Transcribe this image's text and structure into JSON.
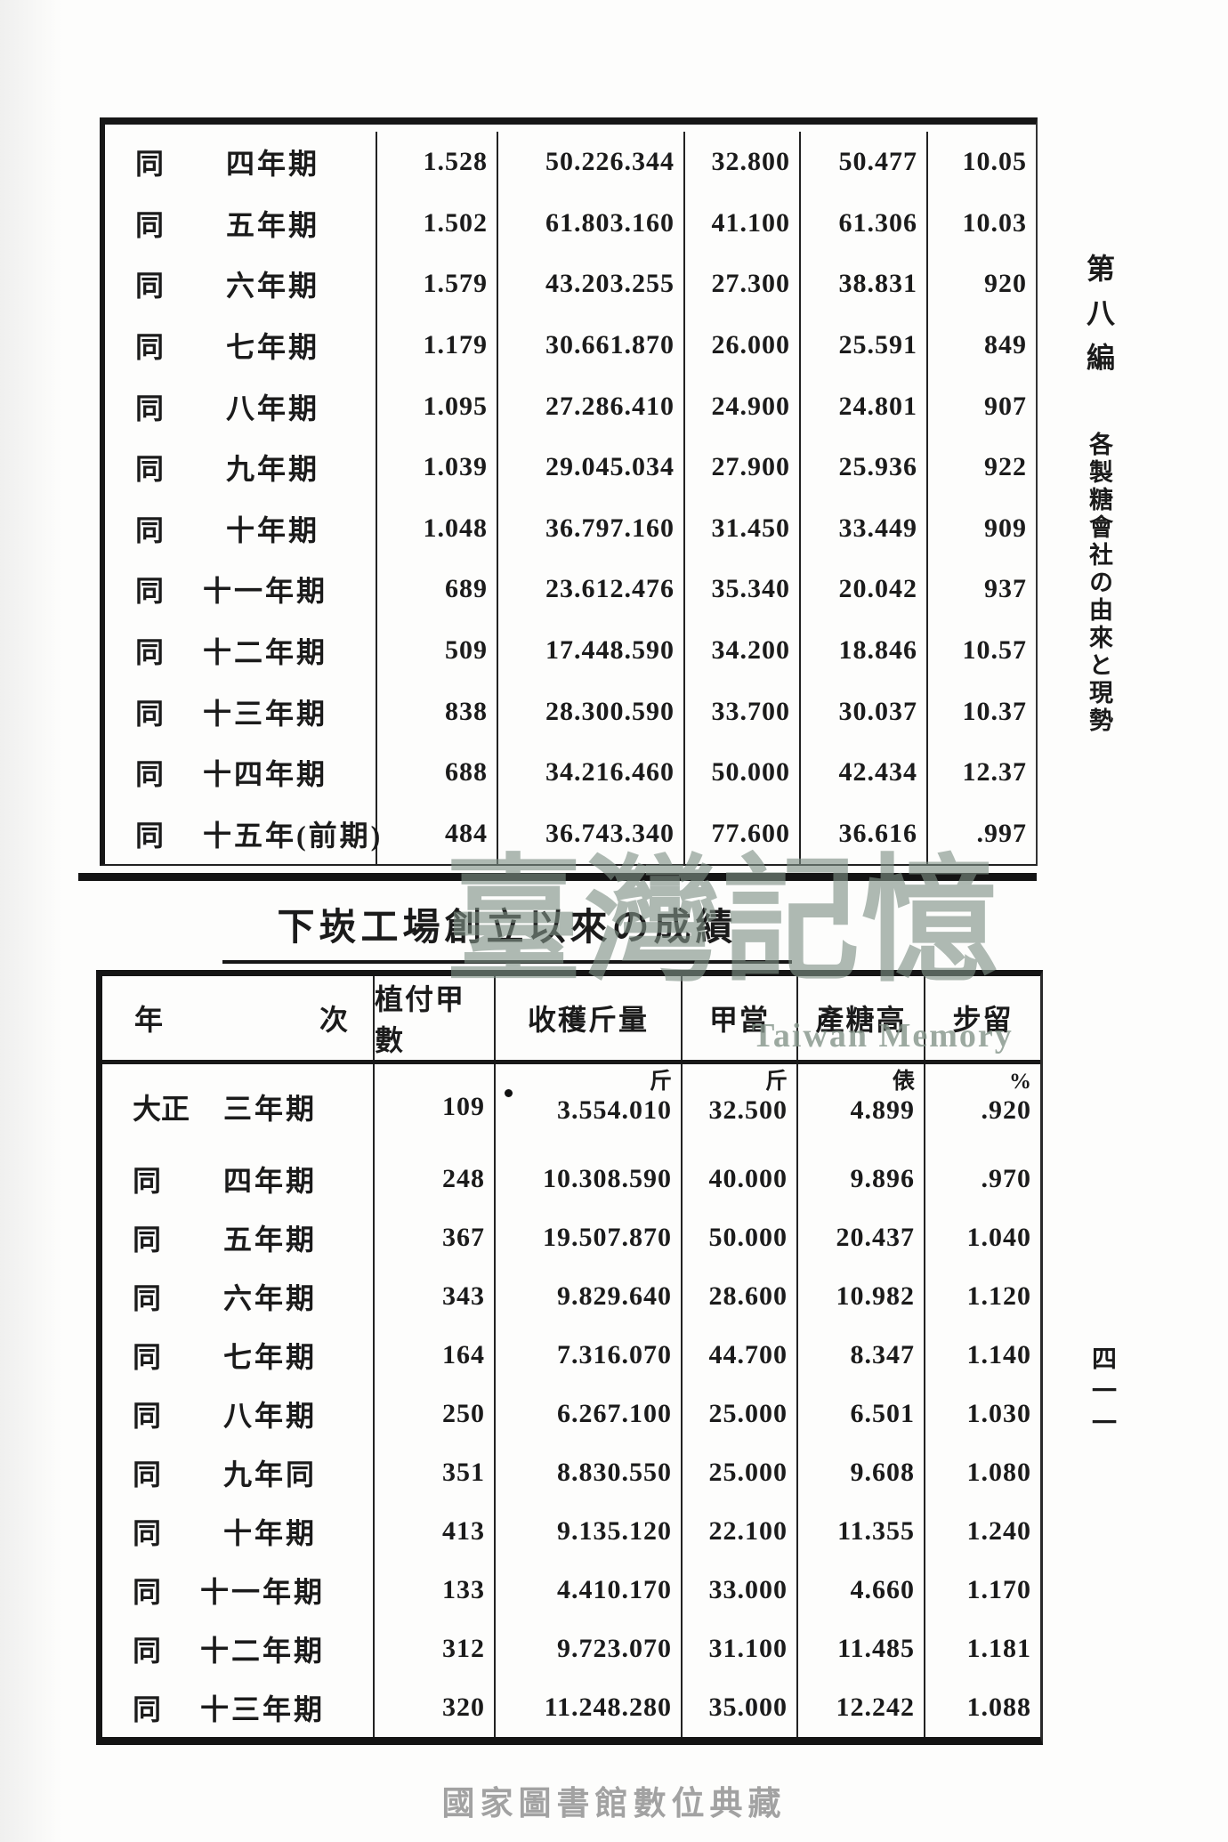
{
  "page": {
    "chapter_side_label": {
      "part1": "第八編",
      "part2": "各製糖會社の由來と現勢"
    },
    "page_number_vertical": "四一一",
    "watermarks": {
      "center_cjk": "臺灣記憶",
      "center_latin": "Taiwan Memory",
      "bottom": "國家圖書館數位典藏"
    },
    "colors": {
      "ink": "#1b1b1b",
      "watermark_green": "#7f9186",
      "watermark_gray": "#a2a2a2"
    }
  },
  "table1": {
    "rows": [
      {
        "era": "同",
        "term": "四年期",
        "c2": "1.528",
        "c3": "50.226.344",
        "c4": "32.800",
        "c5": "50.477",
        "c6": "10.05"
      },
      {
        "era": "同",
        "term": "五年期",
        "c2": "1.502",
        "c3": "61.803.160",
        "c4": "41.100",
        "c5": "61.306",
        "c6": "10.03"
      },
      {
        "era": "同",
        "term": "六年期",
        "c2": "1.579",
        "c3": "43.203.255",
        "c4": "27.300",
        "c5": "38.831",
        "c6": "920"
      },
      {
        "era": "同",
        "term": "七年期",
        "c2": "1.179",
        "c3": "30.661.870",
        "c4": "26.000",
        "c5": "25.591",
        "c6": "849"
      },
      {
        "era": "同",
        "term": "八年期",
        "c2": "1.095",
        "c3": "27.286.410",
        "c4": "24.900",
        "c5": "24.801",
        "c6": "907"
      },
      {
        "era": "同",
        "term": "九年期",
        "c2": "1.039",
        "c3": "29.045.034",
        "c4": "27.900",
        "c5": "25.936",
        "c6": "922"
      },
      {
        "era": "同",
        "term": "十年期",
        "c2": "1.048",
        "c3": "36.797.160",
        "c4": "31.450",
        "c5": "33.449",
        "c6": "909"
      },
      {
        "era": "同",
        "term": "十一年期",
        "c2": "689",
        "c3": "23.612.476",
        "c4": "35.340",
        "c5": "20.042",
        "c6": "937"
      },
      {
        "era": "同",
        "term": "十二年期",
        "c2": "509",
        "c3": "17.448.590",
        "c4": "34.200",
        "c5": "18.846",
        "c6": "10.57"
      },
      {
        "era": "同",
        "term": "十三年期",
        "c2": "838",
        "c3": "28.300.590",
        "c4": "33.700",
        "c5": "30.037",
        "c6": "10.37"
      },
      {
        "era": "同",
        "term": "十四年期",
        "c2": "688",
        "c3": "34.216.460",
        "c4": "50.000",
        "c5": "42.434",
        "c6": "12.37"
      },
      {
        "era": "同",
        "term": "十五年(前期)",
        "c2": "484",
        "c3": "36.743.340",
        "c4": "77.600",
        "c5": "36.616",
        "c6": ".997"
      }
    ]
  },
  "table2": {
    "title": "下崁工場創立以來の成績",
    "headers": {
      "year_left": "年",
      "year_right": "次",
      "planted_area": "植付甲數",
      "harvest": "收穫斤量",
      "per_kou": "甲當",
      "sugar_output": "產糖高",
      "yield": "步留"
    },
    "units": {
      "col3": "斤",
      "col4": "斤",
      "col5": "俵",
      "col6": "%"
    },
    "rows": [
      {
        "era": "大正",
        "term": "三年期",
        "c2": "109",
        "c3": "3.554.010",
        "c4": "32.500",
        "c5": "4.899",
        "c6": ".920"
      },
      {
        "era": "同",
        "term": "四年期",
        "c2": "248",
        "c3": "10.308.590",
        "c4": "40.000",
        "c5": "9.896",
        "c6": ".970"
      },
      {
        "era": "同",
        "term": "五年期",
        "c2": "367",
        "c3": "19.507.870",
        "c4": "50.000",
        "c5": "20.437",
        "c6": "1.040"
      },
      {
        "era": "同",
        "term": "六年期",
        "c2": "343",
        "c3": "9.829.640",
        "c4": "28.600",
        "c5": "10.982",
        "c6": "1.120"
      },
      {
        "era": "同",
        "term": "七年期",
        "c2": "164",
        "c3": "7.316.070",
        "c4": "44.700",
        "c5": "8.347",
        "c6": "1.140"
      },
      {
        "era": "同",
        "term": "八年期",
        "c2": "250",
        "c3": "6.267.100",
        "c4": "25.000",
        "c5": "6.501",
        "c6": "1.030"
      },
      {
        "era": "同",
        "term": "九年同",
        "c2": "351",
        "c3": "8.830.550",
        "c4": "25.000",
        "c5": "9.608",
        "c6": "1.080"
      },
      {
        "era": "同",
        "term": "十年期",
        "c2": "413",
        "c3": "9.135.120",
        "c4": "22.100",
        "c5": "11.355",
        "c6": "1.240"
      },
      {
        "era": "同",
        "term": "十一年期",
        "c2": "133",
        "c3": "4.410.170",
        "c4": "33.000",
        "c5": "4.660",
        "c6": "1.170"
      },
      {
        "era": "同",
        "term": "十二年期",
        "c2": "312",
        "c3": "9.723.070",
        "c4": "31.100",
        "c5": "11.485",
        "c6": "1.181"
      },
      {
        "era": "同",
        "term": "十三年期",
        "c2": "320",
        "c3": "11.248.280",
        "c4": "35.000",
        "c5": "12.242",
        "c6": "1.088"
      }
    ]
  }
}
